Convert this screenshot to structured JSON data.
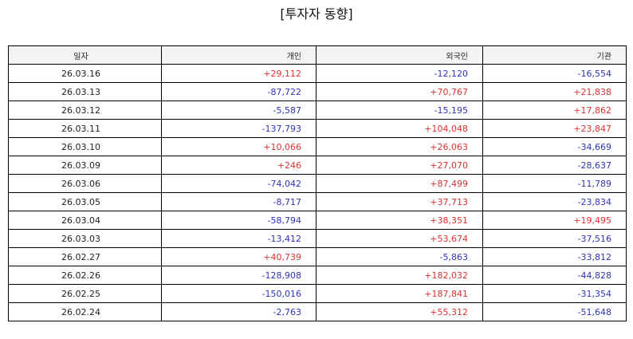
{
  "title": "[투자자 동향]",
  "table": {
    "headers": [
      "일자",
      "개인",
      "외국인",
      "기관"
    ],
    "rows": [
      [
        "26.03.16",
        "+29,112",
        "-12,120",
        "-16,554"
      ],
      [
        "26.03.13",
        "-87,722",
        "+70,767",
        "+21,838"
      ],
      [
        "26.03.12",
        "-5,587",
        "-15,195",
        "+17,862"
      ],
      [
        "26.03.11",
        "-137,793",
        "+104,048",
        "+23,847"
      ],
      [
        "26.03.10",
        "+10,066",
        "+26,063",
        "-34,669"
      ],
      [
        "26.03.09",
        "+246",
        "+27,070",
        "-28,637"
      ],
      [
        "26.03.06",
        "-74,042",
        "+87,499",
        "-11,789"
      ],
      [
        "26.03.05",
        "-8,717",
        "+37,713",
        "-23,834"
      ],
      [
        "26.03.04",
        "-58,794",
        "+38,351",
        "+19,495"
      ],
      [
        "26.03.03",
        "-13,412",
        "+53,674",
        "-37,516"
      ],
      [
        "26.02.27",
        "+40,739",
        "-5,863",
        "-33,812"
      ],
      [
        "26.02.26",
        "-128,908",
        "+182,032",
        "-44,828"
      ],
      [
        "26.02.25",
        "-150,016",
        "+187,841",
        "-31,354"
      ],
      [
        "26.02.24",
        "-2,763",
        "+55,312",
        "-51,648"
      ]
    ]
  },
  "colors": {
    "positive": "#e03131",
    "negative": "#2f33b8",
    "header_bg": "#f3f3f3",
    "border": "#000000"
  }
}
